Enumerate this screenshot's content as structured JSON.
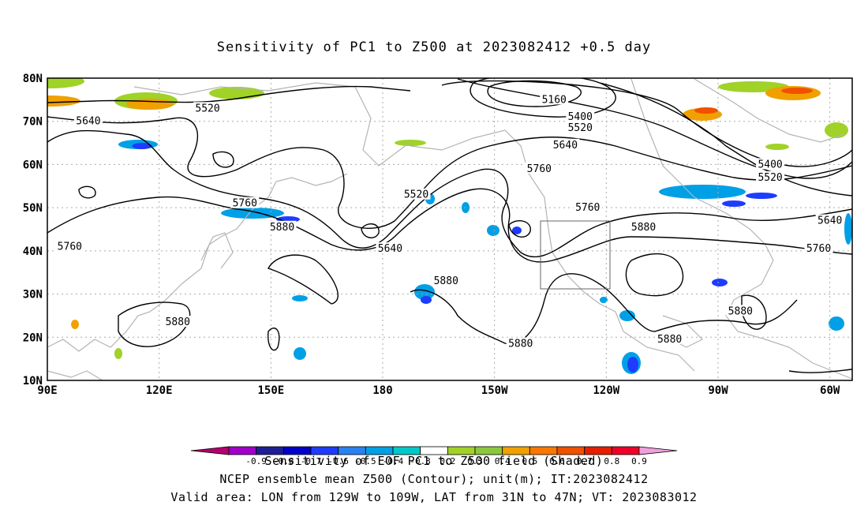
{
  "title": "Sensitivity of PC1 to Z500 at 2023082412 +0.5 day",
  "lat_labels": [
    "10N",
    "20N",
    "30N",
    "40N",
    "50N",
    "60N",
    "70N",
    "80N"
  ],
  "lon_labels": [
    "90E",
    "120E",
    "150E",
    "180",
    "150W",
    "120W",
    "90W",
    "60W"
  ],
  "contour_labels": [
    {
      "text": "5520",
      "lon": 133,
      "lat": 73
    },
    {
      "text": "5640",
      "lon": 101,
      "lat": 70
    },
    {
      "text": "5160",
      "lon": -134,
      "lat": 75
    },
    {
      "text": "5400",
      "lon": -127,
      "lat": 71
    },
    {
      "text": "5520",
      "lon": -127,
      "lat": 68.5
    },
    {
      "text": "5640",
      "lon": -131,
      "lat": 64.5
    },
    {
      "text": "5760",
      "lon": -138,
      "lat": 59
    },
    {
      "text": "5520",
      "lon": -171,
      "lat": 53
    },
    {
      "text": "5760",
      "lon": -125,
      "lat": 50
    },
    {
      "text": "5760",
      "lon": 143,
      "lat": 51
    },
    {
      "text": "5880",
      "lon": 153,
      "lat": 45.5
    },
    {
      "text": "5640",
      "lon": -178,
      "lat": 40.5
    },
    {
      "text": "5760",
      "lon": 96,
      "lat": 41
    },
    {
      "text": "5880",
      "lon": -110,
      "lat": 45.5
    },
    {
      "text": "5400",
      "lon": -76,
      "lat": 60
    },
    {
      "text": "5520",
      "lon": -76,
      "lat": 57
    },
    {
      "text": "5640",
      "lon": -60,
      "lat": 47
    },
    {
      "text": "5760",
      "lon": -63,
      "lat": 40.5
    },
    {
      "text": "5880",
      "lon": -163,
      "lat": 33
    },
    {
      "text": "5880",
      "lon": -84,
      "lat": 26
    },
    {
      "text": "5880",
      "lon": 125,
      "lat": 23.5
    },
    {
      "text": "5880",
      "lon": -143,
      "lat": 18.5
    },
    {
      "text": "5880",
      "lon": -103,
      "lat": 19.5
    }
  ],
  "colorbar": {
    "labels": [
      "-0.9",
      "-0.8",
      "-0.7",
      "-0.6",
      "-0.5",
      "-0.4",
      "-0.3",
      "0.2",
      "0.3",
      "0.4",
      "0.5",
      "0.6",
      "0.7",
      "0.8",
      "0.9"
    ],
    "colors": [
      "#a000c8",
      "#1e1e96",
      "#0000c8",
      "#1e3cff",
      "#2882f0",
      "#00a0e6",
      "#00c8c8",
      "#ffffff",
      "#a0d228",
      "#8cc83c",
      "#f0a000",
      "#fa7800",
      "#f05000",
      "#e61e00",
      "#f00028"
    ],
    "end_colors": [
      "#b4006e",
      "#f0a0dc"
    ]
  },
  "caption1": "Sensitivity of EOF PC1 to Z500 field (Shaded)",
  "caption2": "NCEP ensemble mean Z500 (Contour); unit(m); IT:2023082412",
  "caption3": "Valid area: LON from 129W to 109W, LAT from 31N to 47N; VT: 2023083012"
}
